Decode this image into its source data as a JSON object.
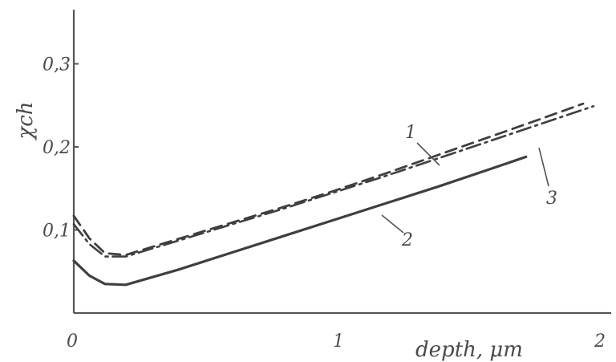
{
  "chart_data": {
    "type": "line",
    "xlabel": "depth, μm",
    "ylabel": "χch",
    "xlim": [
      0,
      2
    ],
    "ylim": [
      0,
      0.36
    ],
    "x_ticks": [
      "0",
      "1",
      "2"
    ],
    "y_ticks": [
      "0,1",
      "0,2",
      "0,3"
    ],
    "y_tick_values": [
      0.1,
      0.2,
      0.3
    ],
    "x_tick_values": [
      0,
      1,
      2
    ],
    "grid": false,
    "series": [
      {
        "name": "1",
        "style": "dashed",
        "x": [
          0,
          0.06,
          0.12,
          0.2,
          0.4,
          0.6,
          0.8,
          1.0,
          1.2,
          1.4,
          1.6,
          1.8,
          1.96
        ],
        "y": [
          0.117,
          0.09,
          0.072,
          0.07,
          0.089,
          0.108,
          0.127,
          0.147,
          0.168,
          0.19,
          0.212,
          0.234,
          0.252
        ]
      },
      {
        "name": "2",
        "style": "solid",
        "x": [
          0,
          0.06,
          0.12,
          0.2,
          0.4,
          0.6,
          0.8,
          1.0,
          1.2,
          1.4,
          1.6,
          1.74
        ],
        "y": [
          0.063,
          0.045,
          0.035,
          0.034,
          0.052,
          0.072,
          0.092,
          0.112,
          0.132,
          0.152,
          0.173,
          0.188
        ]
      },
      {
        "name": "3",
        "style": "dash-dot",
        "x": [
          0,
          0.06,
          0.12,
          0.2,
          0.4,
          0.6,
          0.8,
          1.0,
          1.2,
          1.4,
          1.6,
          1.8,
          2.0
        ],
        "y": [
          0.107,
          0.083,
          0.068,
          0.068,
          0.087,
          0.106,
          0.125,
          0.145,
          0.165,
          0.186,
          0.207,
          0.228,
          0.249
        ]
      }
    ]
  }
}
